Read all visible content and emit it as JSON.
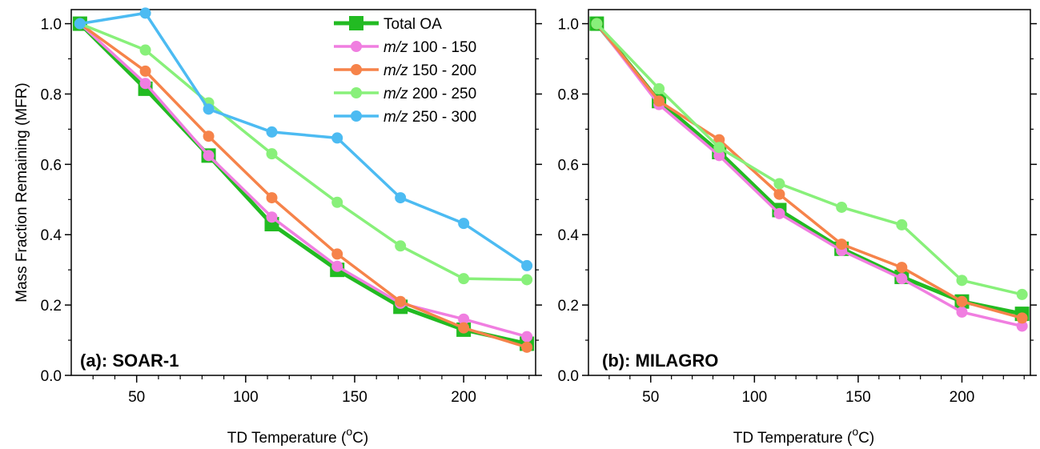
{
  "chart_data": [
    {
      "type": "line",
      "panel_label": "(a): SOAR-1",
      "xlabel": "TD Temperature (",
      "xlabel_sup": "o",
      "xlabel_end": "C)",
      "ylabel": "Mass Fraction Remaining (MFR)",
      "xlim": [
        20,
        233
      ],
      "ylim": [
        0,
        1.04
      ],
      "xticks": [
        50,
        100,
        150,
        200
      ],
      "yticks": [
        0.0,
        0.2,
        0.4,
        0.6,
        0.8,
        1.0
      ],
      "ytick_labels": [
        "0.0",
        "0.2",
        "0.4",
        "0.6",
        "0.8",
        "1.0"
      ],
      "legend": {
        "placement": "top-right"
      },
      "x": [
        24,
        54,
        83,
        112,
        142,
        171,
        200,
        229
      ],
      "series": [
        {
          "name": "Total OA",
          "marker": "square",
          "color": "#22bb22",
          "values": [
            1.0,
            0.815,
            0.625,
            0.43,
            0.3,
            0.195,
            0.13,
            0.09
          ]
        },
        {
          "name": "100 - 150",
          "name_prefix": "m/z",
          "marker": "circle",
          "color": "#f07ee0",
          "values": [
            1.0,
            0.83,
            0.625,
            0.45,
            0.31,
            0.205,
            0.16,
            0.11
          ]
        },
        {
          "name": "150 - 200",
          "name_prefix": "m/z",
          "marker": "circle",
          "color": "#f6834a",
          "values": [
            1.0,
            0.865,
            0.68,
            0.505,
            0.345,
            0.21,
            0.135,
            0.08
          ]
        },
        {
          "name": "200 - 250",
          "name_prefix": "m/z",
          "marker": "circle",
          "color": "#88f07a",
          "values": [
            1.0,
            0.925,
            0.775,
            0.63,
            0.492,
            0.368,
            0.275,
            0.272
          ]
        },
        {
          "name": "250 - 300",
          "name_prefix": "m/z",
          "marker": "circle",
          "color": "#4cbbf2",
          "values": [
            1.0,
            1.03,
            0.757,
            0.692,
            0.675,
            0.505,
            0.432,
            0.312
          ]
        }
      ]
    },
    {
      "type": "line",
      "panel_label": "(b): MILAGRO",
      "xlabel": "TD Temperature (",
      "xlabel_sup": "o",
      "xlabel_end": "C)",
      "ylabel": "",
      "xlim": [
        20,
        233
      ],
      "ylim": [
        0,
        1.04
      ],
      "xticks": [
        50,
        100,
        150,
        200
      ],
      "yticks": [
        0.0,
        0.2,
        0.4,
        0.6,
        0.8,
        1.0
      ],
      "ytick_labels": [
        "0.0",
        "0.2",
        "0.4",
        "0.6",
        "0.8",
        "1.0"
      ],
      "x": [
        24,
        54,
        83,
        112,
        142,
        171,
        200,
        229
      ],
      "series": [
        {
          "name": "Total OA",
          "marker": "square",
          "color": "#22bb22",
          "values": [
            1.0,
            0.78,
            0.635,
            0.47,
            0.36,
            0.28,
            0.21,
            0.175
          ]
        },
        {
          "name": "100 - 150",
          "name_prefix": "m/z",
          "marker": "circle",
          "color": "#f07ee0",
          "values": [
            1.0,
            0.77,
            0.625,
            0.46,
            0.355,
            0.275,
            0.18,
            0.14
          ]
        },
        {
          "name": "150 - 200",
          "name_prefix": "m/z",
          "marker": "circle",
          "color": "#f6834a",
          "values": [
            1.0,
            0.78,
            0.67,
            0.515,
            0.373,
            0.307,
            0.21,
            0.163
          ]
        },
        {
          "name": "200 - 250",
          "name_prefix": "m/z",
          "marker": "circle",
          "color": "#88f07a",
          "values": [
            1.0,
            0.815,
            0.648,
            0.545,
            0.478,
            0.428,
            0.27,
            0.23
          ]
        }
      ]
    }
  ]
}
